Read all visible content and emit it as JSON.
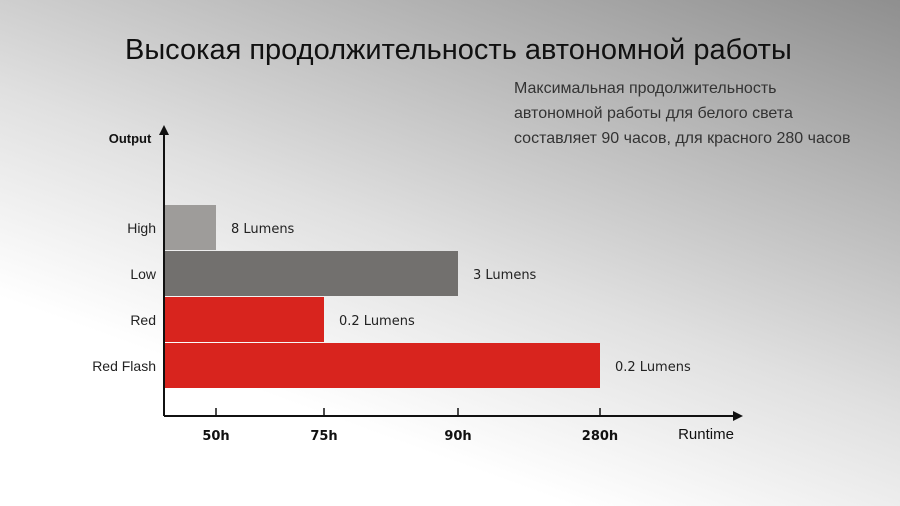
{
  "page": {
    "title": "Высокая продолжительность автономной работы",
    "subtitle": "Максимальная продолжительность автономной работы для белого света составляет 90 часов, для красного 280 часов"
  },
  "chart_data": {
    "type": "bar",
    "orientation": "horizontal",
    "ylabel": "Output",
    "xlabel": "Runtime",
    "categories": [
      "High",
      "Low",
      "Red",
      "Red Flash"
    ],
    "values": [
      "50h",
      "90h",
      "75h",
      "280h"
    ],
    "x_ticks": [
      "50h",
      "75h",
      "90h",
      "280h"
    ],
    "data_labels": [
      "8 Lumens",
      "3 Lumens",
      "0.2 Lumens",
      "0.2 Lumens"
    ],
    "colors": [
      "#9e9c9a",
      "#72706e",
      "#d8241e",
      "#d8241e"
    ],
    "grid": false
  }
}
